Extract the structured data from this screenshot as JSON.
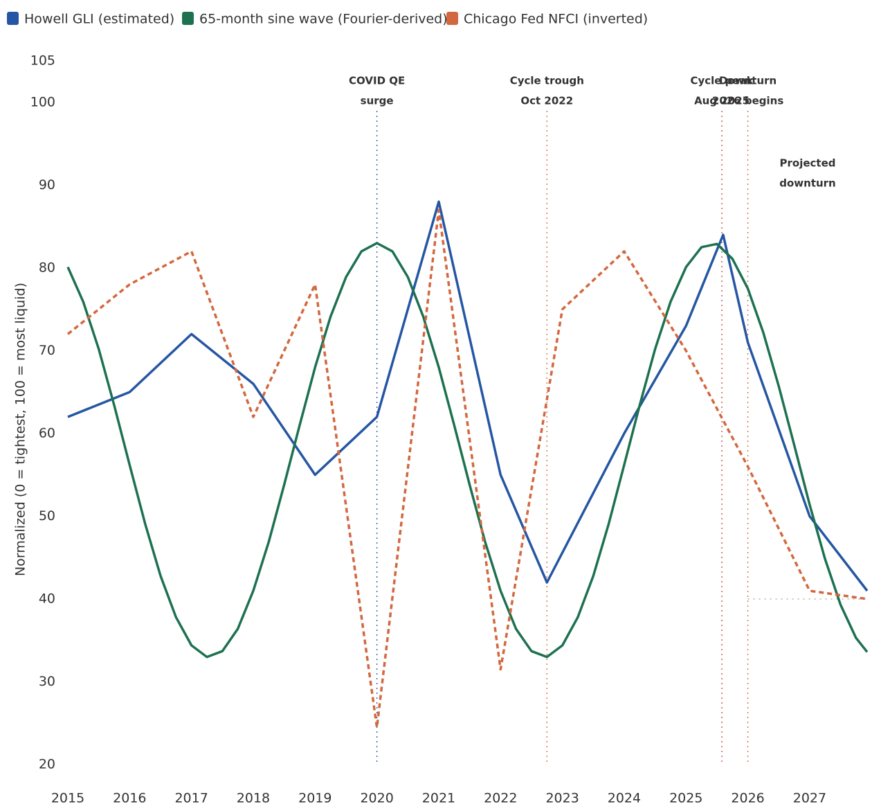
{
  "chart_data": {
    "type": "line",
    "y_label": "Normalized (0 = tightest, 100 = most liquid)",
    "xlim": [
      2015,
      2027.93
    ],
    "xticks": [
      2015,
      2016,
      2017,
      2018,
      2019,
      2020,
      2021,
      2022,
      2023,
      2024,
      2025,
      2026,
      2027
    ],
    "ylim": [
      20,
      105
    ],
    "yticks": [
      20,
      30,
      40,
      50,
      60,
      70,
      80,
      90,
      100,
      105
    ],
    "grid": false,
    "legend": "top",
    "series": [
      {
        "name": "Howell GLI (estimated)",
        "color": "#2556a3",
        "dash": false,
        "x": [
          2015,
          2016,
          2017,
          2018,
          2019,
          2020,
          2021,
          2022,
          2022.75,
          2024,
          2025,
          2025.6,
          2026,
          2027,
          2027.93
        ],
        "values": [
          62,
          65,
          72,
          66,
          55,
          62,
          88,
          55,
          42,
          60,
          73,
          84,
          71,
          50,
          41
        ]
      },
      {
        "name": "65-month sine wave (Fourier-derived)",
        "color": "#1d7150",
        "dash": false,
        "x": [
          2015,
          2015.25,
          2015.5,
          2015.75,
          2016,
          2016.25,
          2016.5,
          2016.75,
          2017,
          2017.25,
          2017.5,
          2017.75,
          2018,
          2018.25,
          2018.5,
          2018.75,
          2019,
          2019.25,
          2019.5,
          2019.75,
          2020,
          2020.25,
          2020.5,
          2020.75,
          2021,
          2021.25,
          2021.5,
          2021.75,
          2022,
          2022.25,
          2022.5,
          2022.75,
          2023,
          2023.25,
          2023.5,
          2023.75,
          2024,
          2024.25,
          2024.5,
          2024.75,
          2025,
          2025.25,
          2025.5,
          2025.75,
          2026,
          2026.25,
          2026.5,
          2026.75,
          2027,
          2027.25,
          2027.5,
          2027.75,
          2027.93
        ],
        "values": [
          80.1,
          75.9,
          70.2,
          63.4,
          56.2,
          49.1,
          42.8,
          37.8,
          34.4,
          33.0,
          33.7,
          36.4,
          41.0,
          46.9,
          53.8,
          61.0,
          68.0,
          74.1,
          78.9,
          82.0,
          83.0,
          82.0,
          78.9,
          74.1,
          68.0,
          61.0,
          53.8,
          46.9,
          41.0,
          36.4,
          33.7,
          33.0,
          34.4,
          37.8,
          42.8,
          49.1,
          56.2,
          63.4,
          70.2,
          75.9,
          80.1,
          82.5,
          82.9,
          81.1,
          77.5,
          72.2,
          65.7,
          58.6,
          51.4,
          44.8,
          39.3,
          35.3,
          33.6
        ]
      },
      {
        "name": "Chicago Fed NFCI (inverted)",
        "color": "#d2683f",
        "dash": true,
        "x": [
          2015,
          2016,
          2017,
          2018,
          2019,
          2020,
          2021,
          2022,
          2023,
          2024,
          2025,
          2026,
          2027,
          2027.93
        ],
        "values": [
          72,
          78,
          82,
          62,
          78,
          24.5,
          87,
          31.5,
          75,
          82,
          70,
          56,
          41,
          40
        ]
      }
    ],
    "annotations": [
      {
        "x": 2020,
        "color": "#2556a3",
        "lines": [
          "COVID QE",
          "surge"
        ]
      },
      {
        "x": 2022.75,
        "color": "#d2683f",
        "lines": [
          "Cycle trough",
          "Oct 2022"
        ]
      },
      {
        "x": 2025.58,
        "color": "#c0443a",
        "lines": [
          "Cycle peak",
          "Aug 2025"
        ]
      },
      {
        "x": 2026,
        "color": "#d2683f",
        "lines": [
          "Downturn",
          "2026 begins"
        ]
      }
    ],
    "projection": {
      "lines": [
        "Projected",
        "downturn"
      ],
      "y": 40,
      "x": 2026
    }
  }
}
